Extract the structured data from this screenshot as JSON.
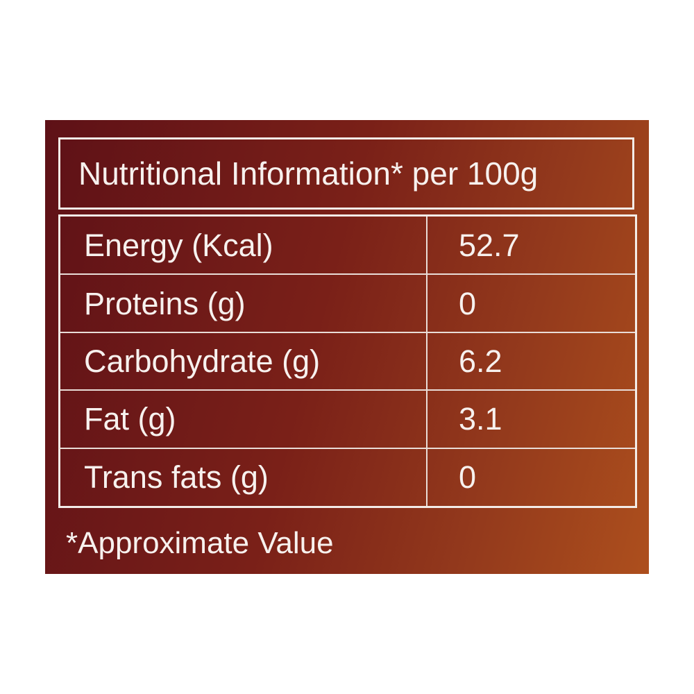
{
  "header": {
    "title": "Nutritional Information* per 100g"
  },
  "table": {
    "rows": [
      [
        "Energy (Kcal)",
        "52.7"
      ],
      [
        "Proteins (g)",
        "0"
      ],
      [
        "Carbohydrate (g)",
        "6.2"
      ],
      [
        "Fat (g)",
        "3.1"
      ],
      [
        "Trans fats (g)",
        "0"
      ]
    ]
  },
  "footnote": "*Approximate Value"
}
